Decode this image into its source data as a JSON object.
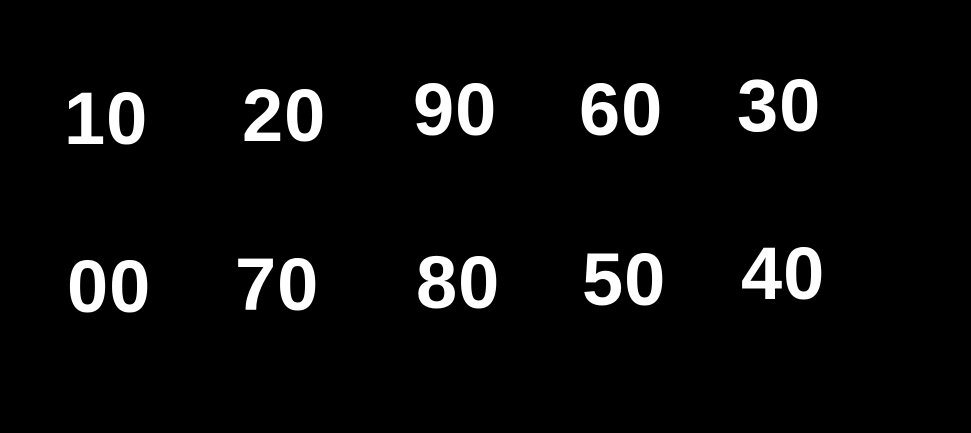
{
  "background_color": "#000000",
  "text_color": "#ffffff",
  "rows": [
    [
      "10",
      "20",
      "90",
      "60",
      "30"
    ],
    [
      "00",
      "70",
      "80",
      "50",
      "40"
    ]
  ]
}
